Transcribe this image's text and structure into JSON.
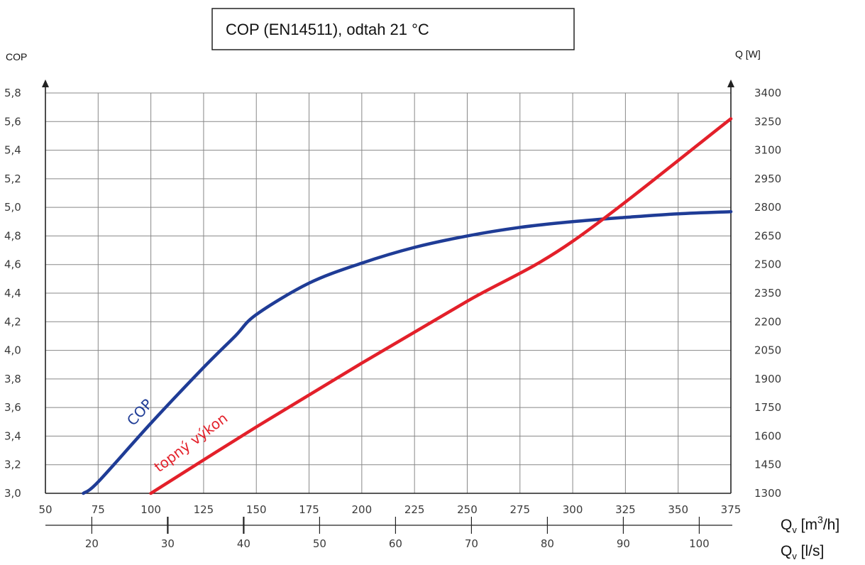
{
  "title": "COP (EN14511), odtah 21 °C",
  "left_axis_unit": "COP",
  "right_axis_unit": "Q [W]",
  "x_unit_m3h": {
    "main": "Q",
    "sub": "v",
    "rest": " [m",
    "sup": "3",
    "tail": "/h]"
  },
  "x_unit_ls": {
    "main": "Q",
    "sub": "v",
    "rest": " [l/s]"
  },
  "colors": {
    "cop": "#1f3c96",
    "power": "#e3202a",
    "grid": "#888888",
    "axis": "#222222"
  },
  "chart_data": {
    "type": "line",
    "x_ticks_m3h": [
      50,
      75,
      100,
      125,
      150,
      175,
      200,
      225,
      250,
      275,
      300,
      325,
      350,
      375
    ],
    "x_ticks_ls": [
      20,
      30,
      40,
      50,
      60,
      70,
      80,
      90,
      100
    ],
    "y_left_ticks": [
      "3,0",
      "3,2",
      "3,4",
      "3,6",
      "3,8",
      "4,0",
      "4,2",
      "4,4",
      "4,6",
      "4,8",
      "5,0",
      "5,2",
      "5,4",
      "5,6",
      "5,8"
    ],
    "y_right_ticks": [
      1300,
      1450,
      1600,
      1750,
      1900,
      2050,
      2200,
      2350,
      2500,
      2650,
      2800,
      2950,
      3100,
      3250,
      3400
    ],
    "xlim": [
      50,
      375
    ],
    "ylim_left": [
      3.0,
      5.8
    ],
    "ylim_right": [
      1300,
      3400
    ],
    "grid": true,
    "series": [
      {
        "name": "COP",
        "axis": "left",
        "x": [
          68,
          75,
          100,
          125,
          140,
          150,
          175,
          200,
          225,
          250,
          275,
          300,
          325,
          350,
          375
        ],
        "y": [
          3.0,
          3.08,
          3.49,
          3.88,
          4.1,
          4.25,
          4.47,
          4.61,
          4.72,
          4.8,
          4.86,
          4.9,
          4.93,
          4.955,
          4.97
        ]
      },
      {
        "name": "topný výkon",
        "axis": "right",
        "x": [
          100,
          150,
          200,
          250,
          300,
          375
        ],
        "y": [
          1300,
          1648,
          1983,
          2308,
          2622,
          3265
        ]
      }
    ]
  }
}
